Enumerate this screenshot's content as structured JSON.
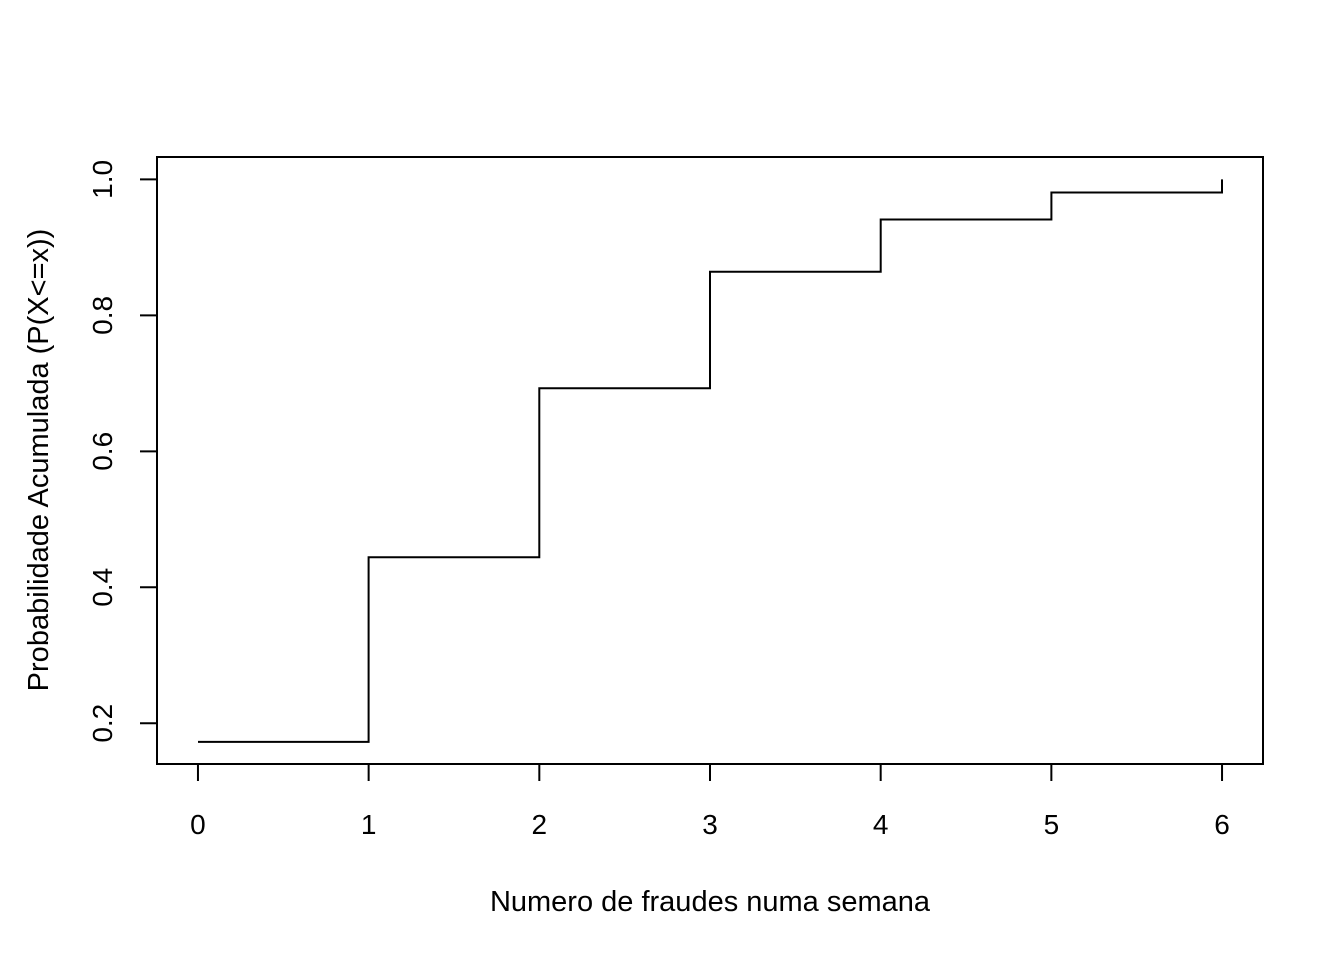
{
  "chart_data": {
    "type": "line",
    "step": true,
    "title": "",
    "xlabel": "Numero de fraudes numa semana",
    "ylabel": "Probabilidade Acumulada (P(X<=x))",
    "x": [
      0,
      1,
      2,
      3,
      4,
      5,
      6
    ],
    "values": [
      0.1725,
      0.4441,
      0.6929,
      0.8643,
      0.9411,
      0.9807,
      1.0
    ],
    "xticks": [
      "0",
      "1",
      "2",
      "3",
      "4",
      "5",
      "6"
    ],
    "yticks": [
      "0.2",
      "0.4",
      "0.6",
      "0.8",
      "1.0"
    ],
    "xlim": [
      -0.24,
      6.24
    ],
    "ylim": [
      0.14,
      1.033
    ],
    "grid": false,
    "line_color": "#000000"
  }
}
